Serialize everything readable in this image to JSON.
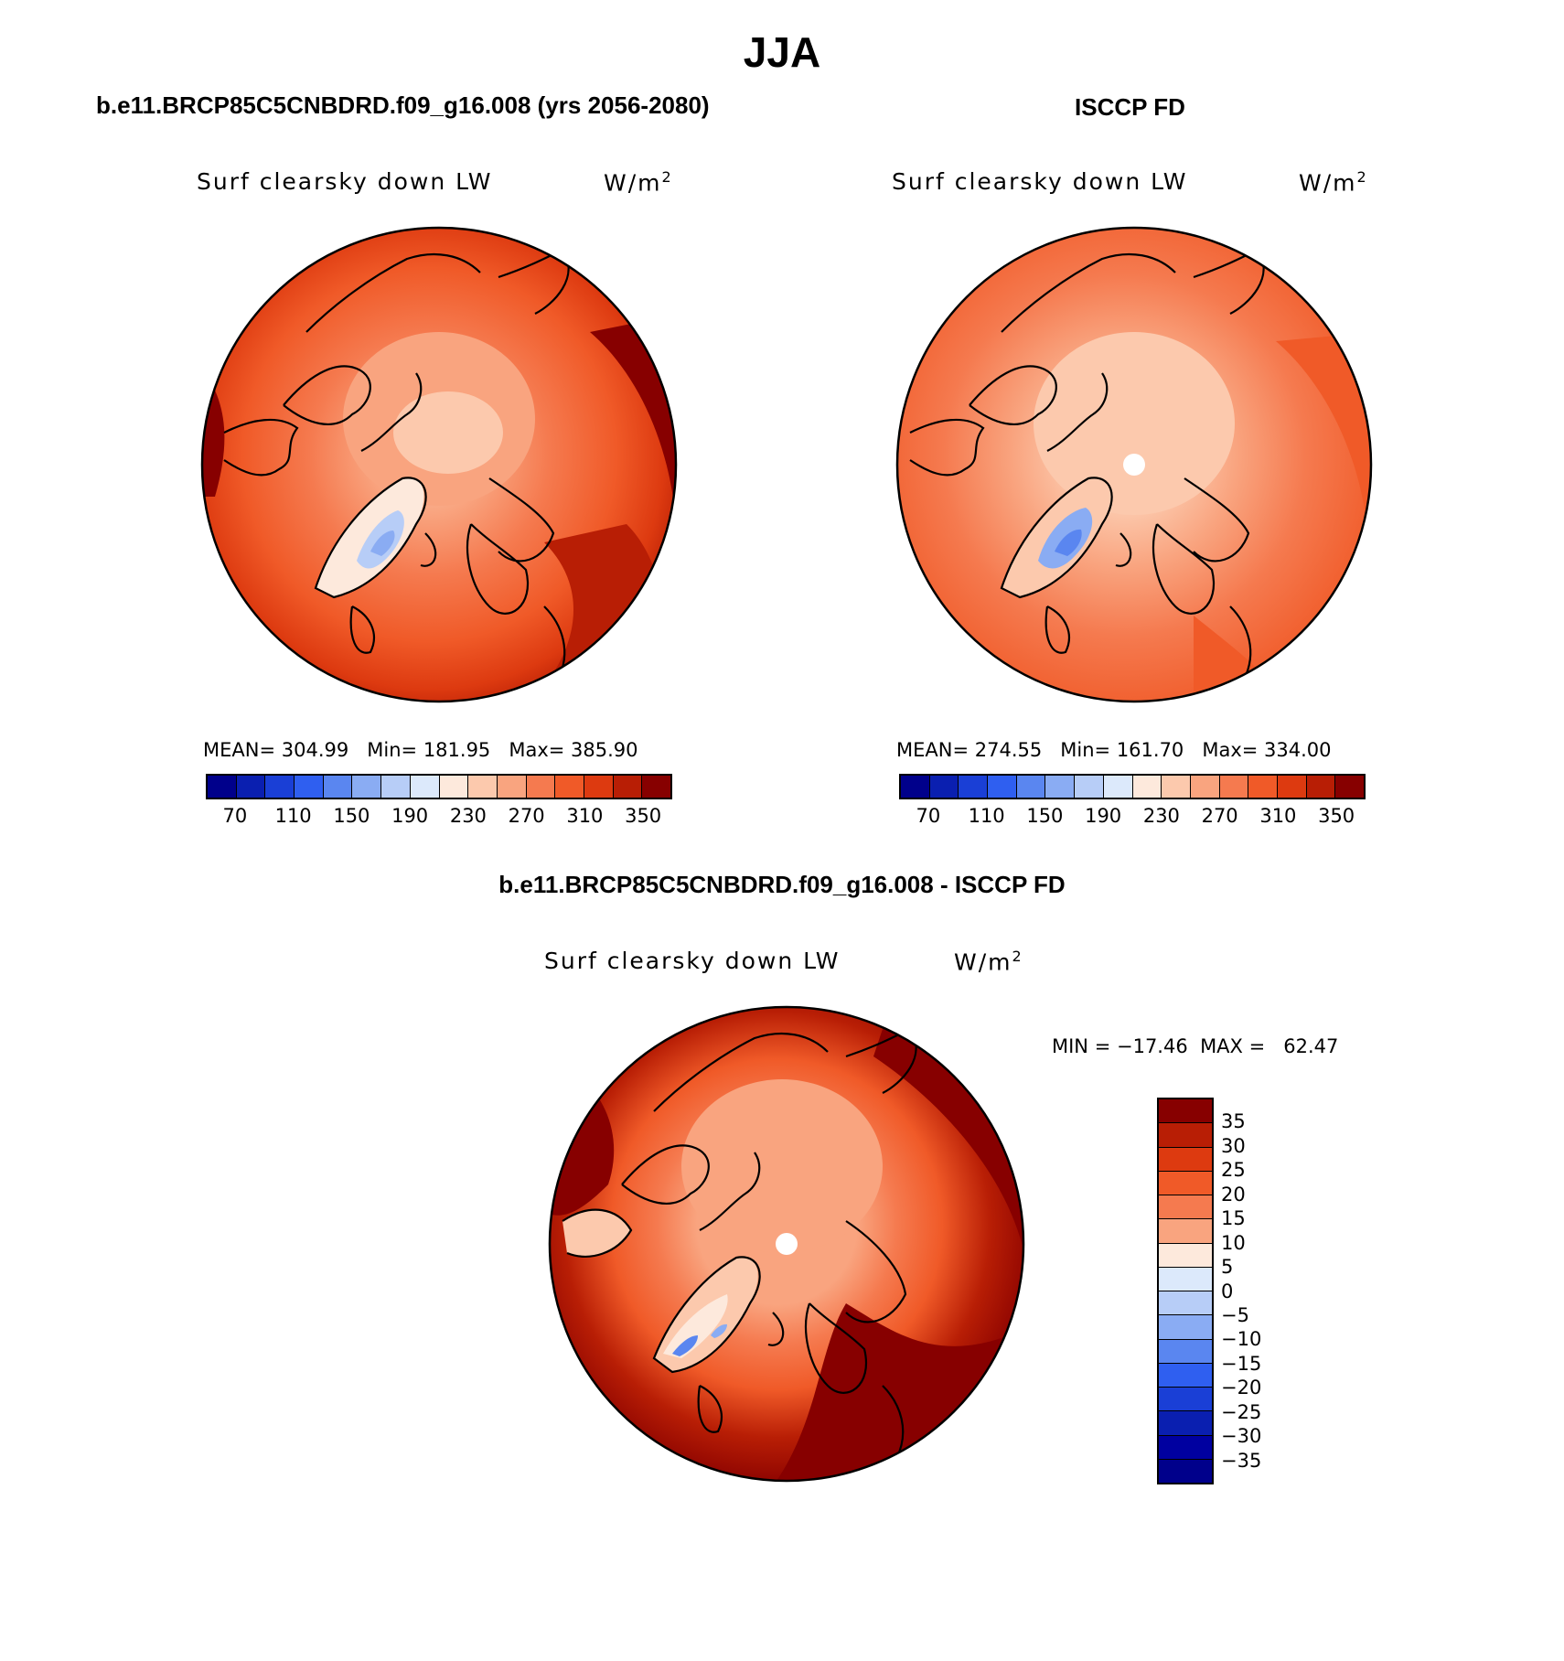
{
  "title": "JJA",
  "panels": {
    "top_left": {
      "case": "b.e11.BRCP85C5CNBDRD.f09_g16.008 (yrs 2056-2080)",
      "variable": "Surf clearsky down LW",
      "units": "W/m",
      "units_sup": "2",
      "mean_label": "MEAN=",
      "mean": "304.99",
      "min_label": "Min=",
      "min": "181.95",
      "max_label": "Max=",
      "max": "385.90"
    },
    "top_right": {
      "case": "ISCCP FD",
      "variable": "Surf clearsky down LW",
      "units": "W/m",
      "units_sup": "2",
      "mean_label": "MEAN=",
      "mean": "274.55",
      "min_label": "Min=",
      "min": "161.70",
      "max_label": "Max=",
      "max": "334.00"
    },
    "bottom": {
      "case": "b.e11.BRCP85C5CNBDRD.f09_g16.008 - ISCCP FD",
      "variable": "Surf clearsky down LW",
      "units": "W/m",
      "units_sup": "2",
      "min_label": "MIN =",
      "min": "−17.46",
      "max_label": "MAX =",
      "max": "62.47"
    }
  },
  "colorbar_abs": {
    "colors": [
      "#00008b",
      "#0a1fb0",
      "#1a3fd6",
      "#2f5ff0",
      "#5a86f0",
      "#8aacf3",
      "#b7cdf7",
      "#dce9fb",
      "#fde9dc",
      "#fcc9ad",
      "#f9a47f",
      "#f57a4f",
      "#f05a28",
      "#dd3a10",
      "#b81e05",
      "#870000"
    ],
    "ticks": [
      "70",
      "110",
      "150",
      "190",
      "230",
      "270",
      "310",
      "350"
    ]
  },
  "colorbar_diff": {
    "colors": [
      "#870000",
      "#b81e05",
      "#dd3a10",
      "#f05a28",
      "#f57a4f",
      "#f9a47f",
      "#fde9dc",
      "#dce9fb",
      "#b7cdf7",
      "#8aacf3",
      "#5a86f0",
      "#2f5ff0",
      "#1a3fd6",
      "#0a1fb0",
      "#0000a0",
      "#00008b"
    ],
    "ticks": [
      "35",
      "30",
      "25",
      "20",
      "15",
      "10",
      "5",
      "0",
      "−5",
      "−10",
      "−15",
      "−20",
      "−25",
      "−30",
      "−35"
    ]
  }
}
